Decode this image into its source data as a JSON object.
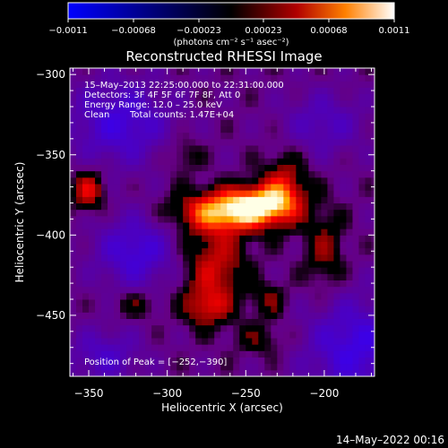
{
  "chart_data": {
    "type": "heatmap",
    "title": "Reconstructed RHESSI Image",
    "xlabel": "Heliocentric X (arcsec)",
    "ylabel": "Heliocentric Y (arcsec)",
    "xlim": [
      -362,
      -168
    ],
    "ylim": [
      -488,
      -296
    ],
    "x_ticks": [
      -350,
      -300,
      -250,
      -200
    ],
    "y_ticks": [
      -300,
      -350,
      -400,
      -450
    ],
    "x_tick_labels": [
      "−350",
      "−300",
      "−250",
      "−200"
    ],
    "y_tick_labels": [
      "−300",
      "−350",
      "−400",
      "−450"
    ],
    "colorbar": {
      "range": [
        -0.0011,
        0.0011
      ],
      "tick_labels": [
        "−0.0011",
        "−0.00068",
        "−0.00023",
        "0.00023",
        "0.00068",
        "0.0011"
      ],
      "unit_label": "(photons cm⁻² s⁻¹ asec⁻²)"
    },
    "annotations": {
      "time_range": "15–May–2013 22:25:00.000 to 22:31:00.000",
      "detectors": "Detectors: 3F 4F 5F 6F 7F 8F, Att 0",
      "energy_range": "Energy Range: 12.0 – 25.0 keV",
      "algorithm": "Clean",
      "total_counts": "Total counts: 1.47E+04",
      "peak_position": "Position of Peak = [−252,−390]"
    },
    "peak": [
      -252,
      -390
    ],
    "sources": [
      {
        "x": -262,
        "y": -385,
        "amp": 1.0,
        "sx": 22,
        "sy": 9
      },
      {
        "x": -240,
        "y": -380,
        "amp": 0.7,
        "sx": 14,
        "sy": 8
      },
      {
        "x": -225,
        "y": -370,
        "amp": 0.55,
        "sx": 10,
        "sy": 14
      },
      {
        "x": -270,
        "y": -420,
        "amp": 0.55,
        "sx": 14,
        "sy": 18
      },
      {
        "x": -275,
        "y": -445,
        "amp": 0.45,
        "sx": 10,
        "sy": 8
      },
      {
        "x": -350,
        "y": -372,
        "amp": 0.6,
        "sx": 7,
        "sy": 9
      },
      {
        "x": -290,
        "y": -350,
        "amp": 0.25,
        "sx": 8,
        "sy": 8
      },
      {
        "x": -200,
        "y": -410,
        "amp": 0.35,
        "sx": 9,
        "sy": 18
      },
      {
        "x": -235,
        "y": -440,
        "amp": 0.3,
        "sx": 8,
        "sy": 8
      },
      {
        "x": -240,
        "y": -465,
        "amp": 0.25,
        "sx": 12,
        "sy": 7
      },
      {
        "x": -320,
        "y": -443,
        "amp": 0.28,
        "sx": 10,
        "sy": 6
      }
    ],
    "negative_regions": [
      {
        "x": -330,
        "y": -330,
        "amp": -0.55,
        "sx": 22,
        "sy": 18
      },
      {
        "x": -320,
        "y": -410,
        "amp": -0.55,
        "sx": 18,
        "sy": 16
      },
      {
        "x": -180,
        "y": -470,
        "amp": -0.6,
        "sx": 22,
        "sy": 22
      },
      {
        "x": -200,
        "y": -330,
        "amp": -0.35,
        "sx": 18,
        "sy": 14
      },
      {
        "x": -340,
        "y": -475,
        "amp": -0.4,
        "sx": 16,
        "sy": 12
      }
    ]
  },
  "footer": {
    "timestamp": "14–May–2022 00:16"
  }
}
